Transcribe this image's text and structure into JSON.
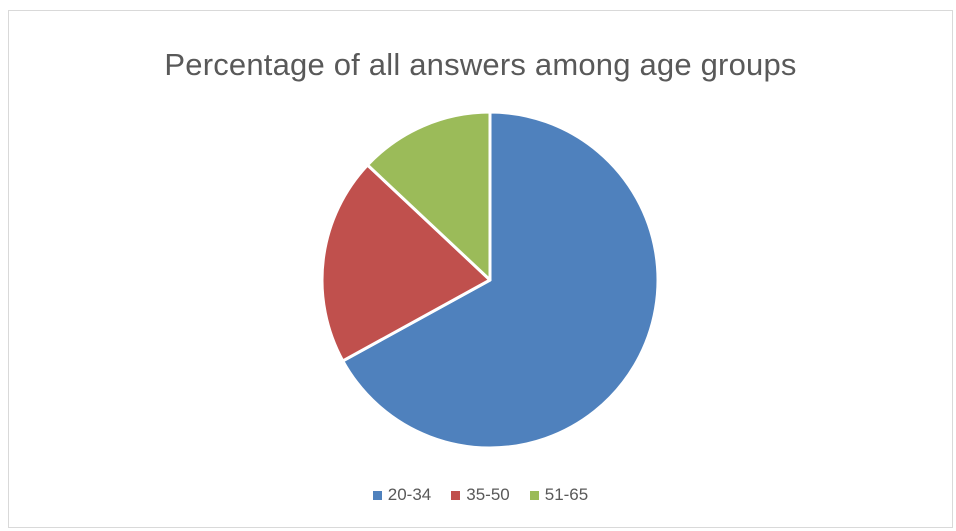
{
  "chart_data": {
    "type": "pie",
    "title": "Percentage of all answers among age groups",
    "categories": [
      "20-34",
      "35-50",
      "51-65"
    ],
    "values": [
      67,
      20,
      13
    ],
    "colors": [
      "#4f81bd",
      "#c0504d",
      "#9bbb59"
    ],
    "legend_position": "bottom"
  }
}
